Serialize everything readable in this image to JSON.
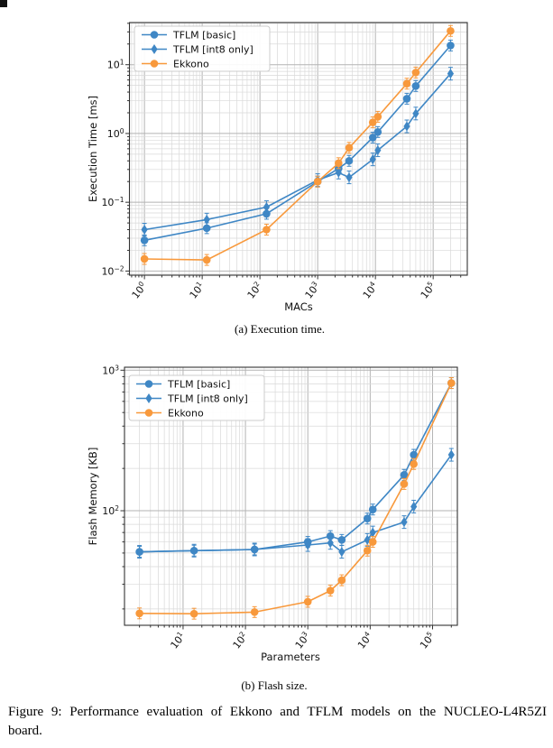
{
  "figure": {
    "subcaption_a": "(a) Execution time.",
    "subcaption_b": "(b) Flash size.",
    "caption_line1": "Figure 9: Performance evaluation of Ekkono and TFLM models on the NUCLEO-L4R5ZI",
    "caption_line2": "board."
  },
  "colors": {
    "tflm_blue": "#3f87c5",
    "ekkono_orange": "#f8993c",
    "grid_major": "#b3b3b3",
    "grid_minor": "#d9d9d9",
    "spine": "#333333",
    "text": "#111111",
    "legend_border": "#cccccc"
  },
  "chart_data": [
    {
      "id": "execution-time",
      "type": "line",
      "xscale": "log",
      "yscale": "log",
      "xlabel": "MACs",
      "ylabel": "Execution Time [ms]",
      "xlim": [
        0.55,
        390000
      ],
      "ylim": [
        0.0087,
        41
      ],
      "x_tick_exponents": [
        0,
        1,
        2,
        3,
        4,
        5
      ],
      "y_tick_exponents": [
        1,
        0,
        -1,
        -2
      ],
      "grid": true,
      "legend_position": "upper left",
      "x": [
        1,
        12,
        130,
        1000,
        2300,
        3500,
        9000,
        11000,
        35000,
        50000,
        200000
      ],
      "series": [
        {
          "name": "TFLM [basic]",
          "marker": "circle",
          "color": "#3f87c5",
          "values": [
            0.028,
            0.042,
            0.068,
            0.2,
            0.31,
            0.4,
            0.87,
            1.05,
            3.2,
            4.9,
            19
          ]
        },
        {
          "name": "TFLM [int8 only]",
          "marker": "diamond",
          "color": "#3f87c5",
          "values": [
            0.04,
            0.056,
            0.085,
            0.21,
            0.27,
            0.23,
            0.42,
            0.57,
            1.27,
            1.95,
            7.4
          ]
        },
        {
          "name": "Ekkono",
          "marker": "circle",
          "color": "#f8993c",
          "values": [
            0.015,
            0.0145,
            0.04,
            0.2,
            0.37,
            0.62,
            1.45,
            1.75,
            5.3,
            7.7,
            31
          ]
        }
      ]
    },
    {
      "id": "flash-size",
      "type": "line",
      "xscale": "log",
      "yscale": "log",
      "xlabel": "Parameters",
      "ylabel": "Flash Memory [KB]",
      "xlim": [
        1.15,
        250000
      ],
      "ylim": [
        15.3,
        1050
      ],
      "x_tick_exponents": [
        1,
        2,
        3,
        4,
        5
      ],
      "y_tick_exponents": [
        3,
        2
      ],
      "grid": true,
      "legend_position": "upper left",
      "x": [
        2,
        15,
        140,
        1000,
        2300,
        3500,
        9000,
        11000,
        35000,
        50000,
        200000
      ],
      "series": [
        {
          "name": "TFLM [basic]",
          "marker": "circle",
          "color": "#3f87c5",
          "values": [
            51,
            52,
            53,
            60,
            66,
            62,
            88,
            102,
            180,
            250,
            810
          ]
        },
        {
          "name": "TFLM [int8 only]",
          "marker": "diamond",
          "color": "#3f87c5",
          "values": [
            51,
            52,
            53,
            57,
            59,
            51,
            62,
            70,
            83,
            107,
            250
          ]
        },
        {
          "name": "Ekkono",
          "marker": "circle",
          "color": "#f8993c",
          "values": [
            18.6,
            18.5,
            19,
            22.5,
            27,
            32,
            52,
            60,
            155,
            215,
            810
          ]
        }
      ]
    }
  ]
}
